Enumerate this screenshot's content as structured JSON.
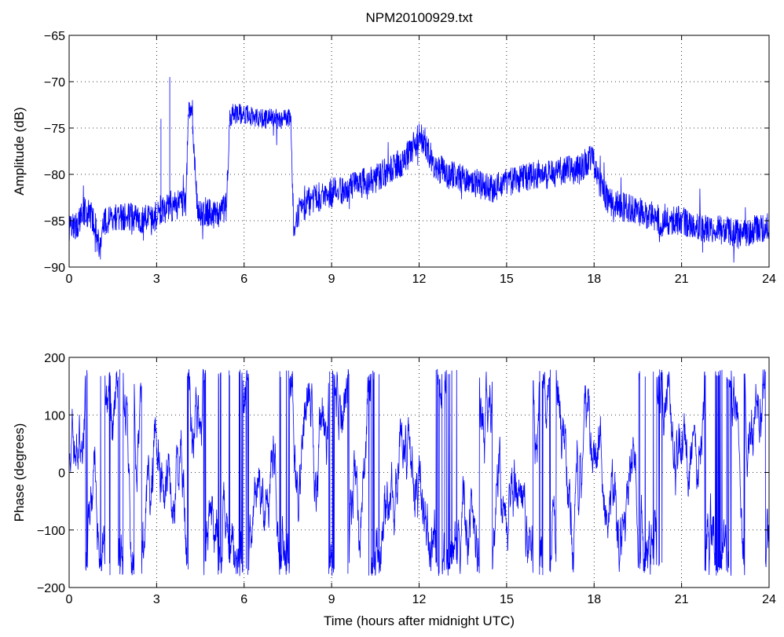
{
  "chart_data": [
    {
      "type": "line",
      "title": "NPM20100929.txt",
      "xlabel": "",
      "ylabel": "Amplitude (dB)",
      "xlim": [
        0,
        24
      ],
      "ylim": [
        -90,
        -65
      ],
      "xticks": [
        0,
        3,
        6,
        9,
        12,
        15,
        18,
        21,
        24
      ],
      "yticks": [
        -65,
        -70,
        -75,
        -80,
        -85,
        -90
      ],
      "grid": true,
      "color": "#0000ff",
      "series": [
        {
          "x": [
            0,
            0.25,
            0.5,
            0.75,
            0.95,
            1.05,
            1.2,
            1.5,
            2.0,
            2.5,
            3.0,
            3.1,
            3.2,
            3.3,
            3.4,
            3.45,
            3.5,
            3.6,
            3.9,
            4.0,
            4.1,
            4.2,
            4.4,
            4.5,
            4.7,
            5.0,
            5.4,
            5.5,
            5.6,
            6.0,
            6.5,
            7.0,
            7.5,
            7.6,
            7.7,
            7.8,
            8.0,
            8.5,
            9.0,
            9.5,
            10.0,
            10.5,
            11.0,
            11.5,
            12.0,
            12.2,
            12.5,
            13.0,
            13.5,
            14.0,
            14.5,
            15.0,
            15.5,
            16.0,
            16.5,
            17.0,
            17.5,
            17.9,
            18.0,
            18.2,
            18.5,
            19.0,
            19.5,
            20.0,
            20.3,
            20.5,
            21.0,
            21.5,
            22.0,
            22.5,
            23.0,
            23.5,
            24.0
          ],
          "y": [
            -85,
            -85.5,
            -84,
            -84.5,
            -86,
            -88,
            -85,
            -84.5,
            -84.5,
            -85,
            -84.5,
            -84,
            -83.5,
            -84,
            -83.5,
            -83,
            -83.5,
            -83.5,
            -83,
            -83,
            -73,
            -73.5,
            -83.5,
            -84,
            -84,
            -84.5,
            -83.5,
            -74,
            -73.5,
            -73.5,
            -74,
            -74,
            -74,
            -74,
            -86,
            -84.5,
            -83.5,
            -82.5,
            -82,
            -81.5,
            -81,
            -80.5,
            -79.5,
            -78.5,
            -76,
            -76.5,
            -79,
            -80,
            -80.5,
            -81,
            -81.5,
            -81,
            -80.5,
            -80,
            -80,
            -79.5,
            -79.5,
            -78,
            -79,
            -81,
            -83,
            -83.5,
            -84,
            -84.5,
            -86,
            -85,
            -85,
            -85.5,
            -86,
            -86,
            -86.5,
            -86,
            -85.5
          ]
        }
      ]
    },
    {
      "type": "line",
      "title": "",
      "xlabel": "Time (hours after midnight UTC)",
      "ylabel": "Phase (degrees)",
      "xlim": [
        0,
        24
      ],
      "ylim": [
        -200,
        200
      ],
      "xticks": [
        0,
        3,
        6,
        9,
        12,
        15,
        18,
        21,
        24
      ],
      "yticks": [
        200,
        100,
        0,
        -100,
        -200
      ],
      "grid": true,
      "color": "#0000ff",
      "series": [
        {
          "x": [],
          "y": []
        }
      ]
    }
  ]
}
